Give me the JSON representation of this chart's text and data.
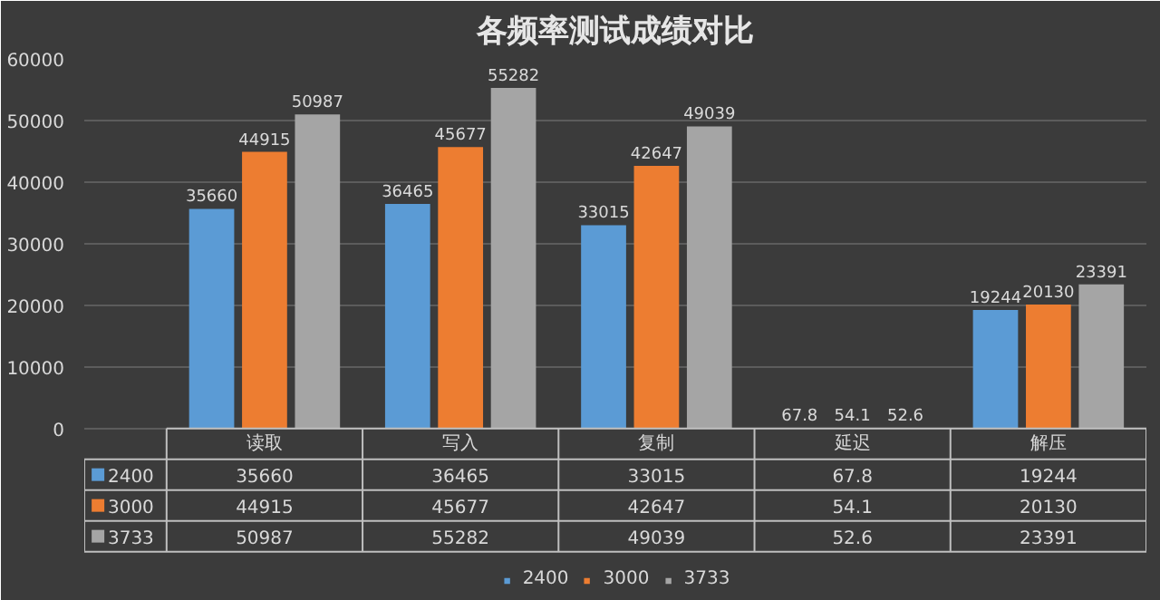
{
  "chart_data": {
    "type": "bar",
    "title": "各频率测试成绩对比",
    "categories": [
      "读取",
      "写入",
      "复制",
      "延迟",
      "解压"
    ],
    "series": [
      {
        "name": "2400",
        "color": "#5b9bd5",
        "values": [
          35660,
          36465,
          33015,
          67.8,
          19244
        ]
      },
      {
        "name": "3000",
        "color": "#ed7d31",
        "values": [
          44915,
          45677,
          42647,
          54.1,
          20130
        ]
      },
      {
        "name": "3733",
        "color": "#a5a5a5",
        "values": [
          50987,
          55282,
          49039,
          52.6,
          23391
        ]
      }
    ],
    "annotations": [
      "35660",
      "36465",
      "33015",
      "67.8",
      "19244",
      "44915",
      "45677",
      "42647",
      "54.1",
      "20130",
      "50987",
      "55282",
      "49039",
      "52.6",
      "23391"
    ],
    "ylim": [
      0,
      60000
    ],
    "yticks": [
      0,
      10000,
      20000,
      30000,
      40000,
      50000,
      60000
    ],
    "grid": "y",
    "legend": "bottom",
    "data_labels": true
  }
}
